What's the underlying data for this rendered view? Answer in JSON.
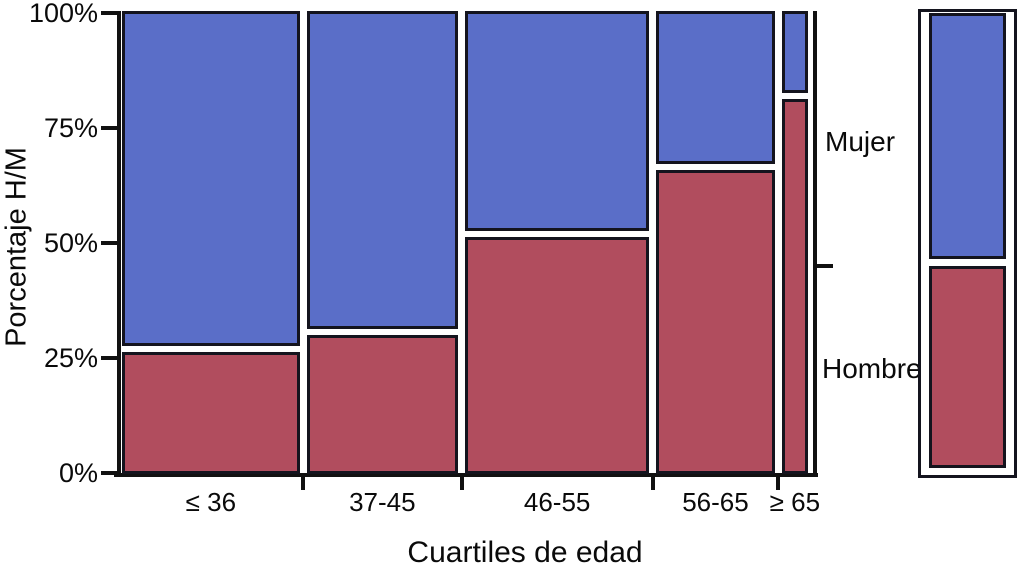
{
  "figure": {
    "ylabel": "Porcentaje H/M",
    "xlabel": "Cuartiles de edad",
    "legend": {
      "top_label": "Mujer",
      "bottom_label": "Hombre"
    }
  },
  "chart_data": {
    "type": "mosaic",
    "title": "",
    "xlabel": "Cuartiles de edad",
    "ylabel": "Porcentaje H/M",
    "categories": [
      "≤ 36",
      "37-45",
      "46-55",
      "56-65",
      "≥ 65"
    ],
    "category_width_pct": [
      27,
      23,
      28,
      18,
      4
    ],
    "y_tick_values": [
      0,
      25,
      50,
      75,
      100
    ],
    "y_tick_labels": [
      "0%",
      "25%",
      "50%",
      "75%",
      "100%"
    ],
    "ylim": [
      0,
      100
    ],
    "grid": false,
    "legend_position": "right",
    "series": [
      {
        "name": "Mujer",
        "color": "#5a6ec8",
        "values_pct": [
          74,
          70,
          48,
          33,
          17
        ]
      },
      {
        "name": "Hombre",
        "color": "#b14d5e",
        "values_pct": [
          26,
          30,
          52,
          67,
          83
        ]
      }
    ],
    "overall_bar": {
      "Mujer": 55,
      "Hombre": 45,
      "tick_at_pct": 45
    }
  },
  "colors": {
    "mujer_blue": "#5a6ec8",
    "hombre_red": "#b14d5e",
    "axis_black": "#111111",
    "background": "#ffffff"
  }
}
